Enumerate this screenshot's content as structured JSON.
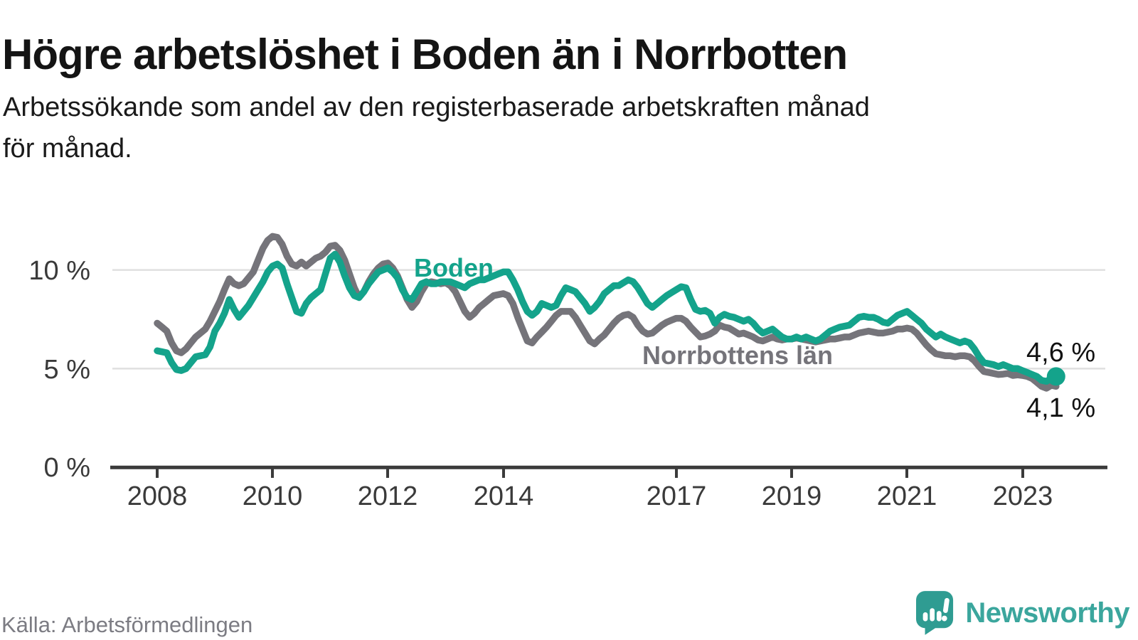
{
  "header": {
    "title": "Högre arbetslöshet i Boden än i Norrbotten",
    "subtitle": "Arbetssökande som andel av den registerbaserade arbetskraften månad för månad.",
    "subtitle_lines": [
      "Arbetssökande som andel av den registerbaserade arbetskraften månad",
      "för månad."
    ]
  },
  "chart_data": {
    "type": "line",
    "title": "Högre arbetslöshet i Boden än i Norrbotten",
    "xlabel": "",
    "ylabel": "Arbetssökande som andel av den registerbaserade arbetskraften",
    "frequency": "monthly",
    "x_start": "2008-01",
    "x_end": "2023-08",
    "ylim": [
      0,
      12.3
    ],
    "grid": "horizontal",
    "legend_position": "inline-labels",
    "x_ticks": [
      "2008",
      "2010",
      "2012",
      "2014",
      "2017",
      "2019",
      "2021",
      "2023"
    ],
    "y_ticks": [
      {
        "value": 10,
        "label": "10 %"
      },
      {
        "value": 5,
        "label": "5 %"
      },
      {
        "value": 0,
        "label": "0 %"
      }
    ],
    "series": [
      {
        "name": "Boden",
        "color": "#14a38b",
        "end_label": "4,6 %",
        "end_value": 4.6,
        "values": [
          5.9,
          5.85,
          5.8,
          5.3,
          4.95,
          4.9,
          5.0,
          5.3,
          5.6,
          5.65,
          5.7,
          6.1,
          6.9,
          7.3,
          7.8,
          8.5,
          8.0,
          7.6,
          7.9,
          8.2,
          8.6,
          9.0,
          9.4,
          9.9,
          10.2,
          10.3,
          10.1,
          9.3,
          8.6,
          7.9,
          7.8,
          8.3,
          8.6,
          8.8,
          9.0,
          9.8,
          10.6,
          10.8,
          10.4,
          9.7,
          9.1,
          8.7,
          8.6,
          8.9,
          9.3,
          9.6,
          9.9,
          10.0,
          10.1,
          9.9,
          9.6,
          9.0,
          8.6,
          8.5,
          8.9,
          9.3,
          9.4,
          9.3,
          9.3,
          9.4,
          9.4,
          9.4,
          9.3,
          9.2,
          9.1,
          9.3,
          9.4,
          9.5,
          9.5,
          9.6,
          9.7,
          9.8,
          9.9,
          9.9,
          9.5,
          9.0,
          8.4,
          7.9,
          7.7,
          7.9,
          8.3,
          8.2,
          8.1,
          8.2,
          8.7,
          9.1,
          9.0,
          8.9,
          8.6,
          8.3,
          7.9,
          8.1,
          8.4,
          8.8,
          9.0,
          9.2,
          9.2,
          9.35,
          9.5,
          9.4,
          9.1,
          8.7,
          8.3,
          8.1,
          8.3,
          8.5,
          8.7,
          8.85,
          9.0,
          9.15,
          9.1,
          8.5,
          8.0,
          7.9,
          7.95,
          7.8,
          7.3,
          7.6,
          7.75,
          7.65,
          7.6,
          7.5,
          7.4,
          7.5,
          7.3,
          7.0,
          6.8,
          6.9,
          7.0,
          6.8,
          6.6,
          6.5,
          6.5,
          6.6,
          6.5,
          6.6,
          6.5,
          6.4,
          6.5,
          6.7,
          6.9,
          7.0,
          7.1,
          7.15,
          7.2,
          7.4,
          7.6,
          7.65,
          7.6,
          7.6,
          7.5,
          7.35,
          7.3,
          7.5,
          7.7,
          7.8,
          7.9,
          7.7,
          7.5,
          7.3,
          7.0,
          6.8,
          6.6,
          6.75,
          6.6,
          6.5,
          6.4,
          6.3,
          6.4,
          6.3,
          6.0,
          5.6,
          5.3,
          5.25,
          5.2,
          5.1,
          5.2,
          5.1,
          5.0,
          5.0,
          4.9,
          4.8,
          4.7,
          4.6,
          4.4,
          4.35,
          4.5,
          4.6
        ]
      },
      {
        "name": "Norrbottens län",
        "color": "#75747a",
        "end_label": "4,1 %",
        "end_value": 4.1,
        "values": [
          7.3,
          7.1,
          6.9,
          6.3,
          5.9,
          5.8,
          6.0,
          6.3,
          6.6,
          6.8,
          7.0,
          7.4,
          7.9,
          8.4,
          9.0,
          9.55,
          9.3,
          9.2,
          9.3,
          9.6,
          9.9,
          10.5,
          11.1,
          11.5,
          11.7,
          11.65,
          11.3,
          10.7,
          10.3,
          10.2,
          10.4,
          10.2,
          10.4,
          10.6,
          10.7,
          10.9,
          11.2,
          11.25,
          11.0,
          10.5,
          9.8,
          9.1,
          8.6,
          8.9,
          9.4,
          9.8,
          10.1,
          10.3,
          10.35,
          10.1,
          9.7,
          9.1,
          8.5,
          8.1,
          8.4,
          8.9,
          9.3,
          9.4,
          9.35,
          9.3,
          9.35,
          9.2,
          8.9,
          8.4,
          7.9,
          7.6,
          7.8,
          8.1,
          8.3,
          8.5,
          8.7,
          8.75,
          8.8,
          8.7,
          8.3,
          7.6,
          7.0,
          6.4,
          6.3,
          6.6,
          6.85,
          7.1,
          7.4,
          7.7,
          7.9,
          7.9,
          7.9,
          7.6,
          7.2,
          6.8,
          6.4,
          6.25,
          6.5,
          6.7,
          7.0,
          7.3,
          7.55,
          7.7,
          7.75,
          7.6,
          7.2,
          6.9,
          6.75,
          6.8,
          7.0,
          7.2,
          7.35,
          7.45,
          7.55,
          7.55,
          7.4,
          7.1,
          6.85,
          6.6,
          6.65,
          6.75,
          6.9,
          7.2,
          7.1,
          7.05,
          6.9,
          6.75,
          6.8,
          6.7,
          6.6,
          6.45,
          6.4,
          6.5,
          6.6,
          6.5,
          6.45,
          6.5,
          6.5,
          6.55,
          6.5,
          6.45,
          6.4,
          6.35,
          6.4,
          6.45,
          6.5,
          6.5,
          6.55,
          6.6,
          6.6,
          6.7,
          6.8,
          6.85,
          6.9,
          6.85,
          6.8,
          6.8,
          6.85,
          6.9,
          7.0,
          7.0,
          7.05,
          7.0,
          6.8,
          6.5,
          6.2,
          5.95,
          5.75,
          5.7,
          5.65,
          5.65,
          5.6,
          5.65,
          5.65,
          5.6,
          5.4,
          5.1,
          4.85,
          4.8,
          4.75,
          4.7,
          4.72,
          4.75,
          4.65,
          4.68,
          4.65,
          4.6,
          4.5,
          4.3,
          4.1,
          4.0,
          4.15,
          4.1
        ]
      }
    ]
  },
  "footer": {
    "source": "Källa: Arbetsförmedlingen",
    "brand": "Newsworthy"
  },
  "colors": {
    "accent_teal": "#14a38b",
    "line_grey": "#75747a",
    "grid": "#e0e0e0",
    "axis": "#3b3b3b",
    "muted_text": "#7c7c83",
    "brand_bubble": "#2f9c92",
    "brand_text": "#3ba69d"
  }
}
